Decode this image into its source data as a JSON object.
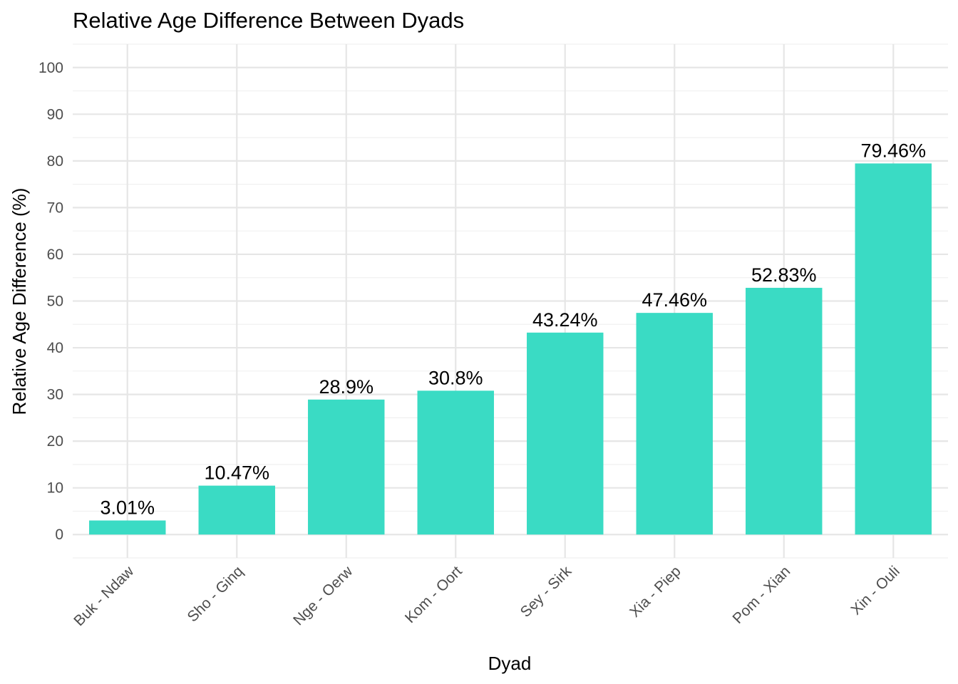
{
  "chart_data": {
    "type": "bar",
    "title": "Relative Age Difference Between Dyads",
    "xlabel": "Dyad",
    "ylabel": "Relative Age Difference (%)",
    "categories": [
      "Buk - Ndaw",
      "Sho - Ginq",
      "Nge - Oerw",
      "Kom - Oort",
      "Sey - Sirk",
      "Xia - Piep",
      "Pom - Xian",
      "Xin - Ouli"
    ],
    "values": [
      3.01,
      10.47,
      28.9,
      30.8,
      43.24,
      47.46,
      52.83,
      79.46
    ],
    "data_labels": [
      "3.01%",
      "10.47%",
      "28.9%",
      "30.8%",
      "43.24%",
      "47.46%",
      "52.83%",
      "79.46%"
    ],
    "ylim": [
      -5,
      105
    ],
    "yticks": [
      0,
      10,
      20,
      30,
      40,
      50,
      60,
      70,
      80,
      90,
      100
    ],
    "grid": true,
    "legend": "none",
    "bar_color": "#3ADBC4"
  }
}
